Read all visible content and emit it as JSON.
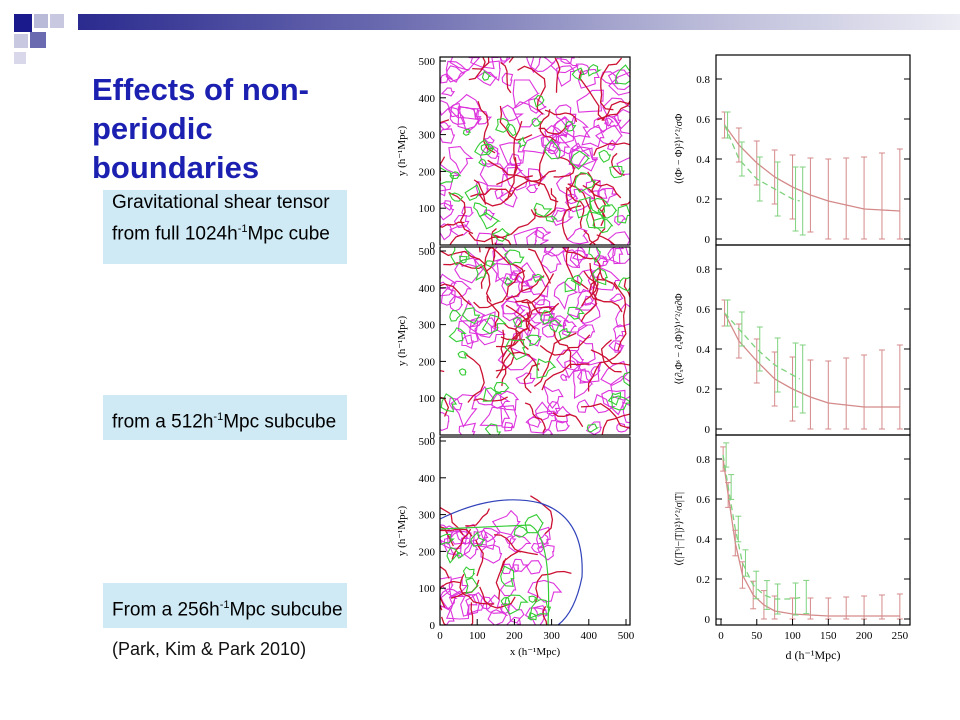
{
  "slide": {
    "title": "Effects of non-periodic boundaries",
    "boxes": [
      {
        "lead": "Gravitational shear tensor from full 1024h",
        "sup": "-1",
        "tail": "Mpc cube"
      },
      {
        "lead": "from a 512h",
        "sup": "-1",
        "tail": "Mpc subcube"
      },
      {
        "lead": "From a 256h",
        "sup": "-1",
        "tail": "Mpc subcube"
      }
    ],
    "citation": "(Park, Kim & Park 2010)"
  },
  "colors": {
    "title": "#1c20b0",
    "box_background": "#cfe9f5",
    "contour_magenta": "#dd33dd",
    "contour_red": "#cc1133",
    "contour_green": "#33cc33",
    "contour_blue": "#3344bb",
    "curve_salmon": "#d48a8a",
    "curve_green": "#7fd27f"
  },
  "figure": {
    "map_panels": {
      "ylabel": "y (h⁻¹Mpc)",
      "xlabel": "x (h⁻¹Mpc)",
      "yticks": [
        "0",
        "100",
        "200",
        "300",
        "400",
        "500"
      ],
      "xticks": [
        "0",
        "100",
        "200",
        "300",
        "400",
        "500"
      ]
    },
    "curve_panels": {
      "xlabel": "d (h⁻¹Mpc)",
      "xticks": [
        "0",
        "50",
        "100",
        "150",
        "200",
        "250"
      ],
      "yticks": [
        "0",
        "0.2",
        "0.4",
        "0.6",
        "0.8"
      ],
      "ylabels": [
        "⟨(Φˢ − Φ)²⟩¹ᐟ²/σΦ",
        "⟨(∂ₓΦˢ − ∂ₓΦ)²⟩¹ᐟ²/σ∂Φ",
        "⟨(|Tˢ|−|T|)²⟩¹ᐟ²/σ|T|"
      ]
    }
  },
  "chart_data": [
    {
      "type": "line",
      "title": "",
      "xlabel": "d (h⁻¹Mpc)",
      "ylabel": "⟨(Φˢ − Φ)²⟩¹ᐟ²/σΦ",
      "xlim": [
        0,
        260
      ],
      "ylim": [
        0,
        0.9
      ],
      "series": [
        {
          "color": "#d48a8a",
          "style": "solid",
          "errorbars": true,
          "x": [
            5,
            25,
            50,
            75,
            100,
            125,
            150,
            175,
            200,
            225,
            250
          ],
          "y": [
            0.57,
            0.47,
            0.38,
            0.31,
            0.26,
            0.22,
            0.19,
            0.17,
            0.15,
            0.145,
            0.14
          ]
        },
        {
          "color": "#7fd27f",
          "style": "dashed",
          "errorbars": true,
          "x": [
            5,
            25,
            50,
            75,
            100,
            110
          ],
          "y": [
            0.57,
            0.4,
            0.3,
            0.25,
            0.2,
            0.19
          ]
        }
      ]
    },
    {
      "type": "line",
      "title": "",
      "xlabel": "d (h⁻¹Mpc)",
      "ylabel": "⟨(∂ₓΦˢ − ∂ₓΦ)²⟩¹ᐟ²/σ∂Φ",
      "xlim": [
        0,
        260
      ],
      "ylim": [
        0,
        0.9
      ],
      "series": [
        {
          "color": "#d48a8a",
          "style": "solid",
          "errorbars": true,
          "x": [
            5,
            25,
            50,
            75,
            100,
            125,
            150,
            175,
            200,
            225,
            250
          ],
          "y": [
            0.58,
            0.44,
            0.34,
            0.25,
            0.2,
            0.16,
            0.13,
            0.12,
            0.11,
            0.11,
            0.11
          ]
        },
        {
          "color": "#7fd27f",
          "style": "dashed",
          "errorbars": true,
          "x": [
            5,
            25,
            50,
            75,
            100,
            110
          ],
          "y": [
            0.58,
            0.5,
            0.4,
            0.32,
            0.27,
            0.25
          ]
        }
      ]
    },
    {
      "type": "line",
      "title": "",
      "xlabel": "d (h⁻¹Mpc)",
      "ylabel": "⟨(|Tˢ|−|T|)²⟩¹ᐟ²/σ|T|",
      "xlim": [
        0,
        260
      ],
      "ylim": [
        0,
        0.9
      ],
      "series": [
        {
          "color": "#d48a8a",
          "style": "solid",
          "errorbars": true,
          "x": [
            3,
            10,
            20,
            30,
            45,
            60,
            75,
            100,
            125,
            150,
            175,
            200,
            225,
            250
          ],
          "y": [
            0.8,
            0.62,
            0.38,
            0.22,
            0.12,
            0.07,
            0.04,
            0.025,
            0.02,
            0.015,
            0.015,
            0.015,
            0.015,
            0.015
          ]
        },
        {
          "color": "#7fd27f",
          "style": "dashed",
          "errorbars": true,
          "x": [
            3,
            10,
            20,
            30,
            45,
            60,
            75,
            100,
            115
          ],
          "y": [
            0.82,
            0.66,
            0.45,
            0.28,
            0.17,
            0.12,
            0.1,
            0.1,
            0.11
          ]
        }
      ]
    }
  ]
}
